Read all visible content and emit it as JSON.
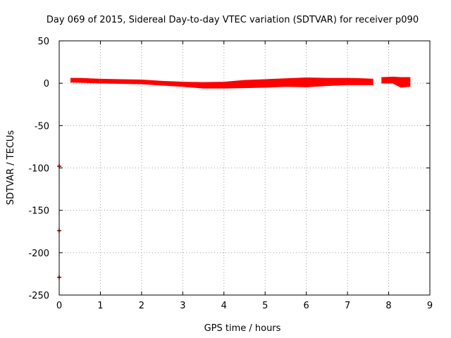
{
  "chart_data": {
    "type": "scatter",
    "title": "Day 069 of 2015, Sidereal Day-to-day VTEC variation (SDTVAR) for receiver p090",
    "xlabel": "GPS time / hours",
    "ylabel": "SDTVAR / TECUs",
    "xlim": [
      0,
      9
    ],
    "ylim": [
      -250,
      50
    ],
    "x_ticks": [
      0,
      1,
      2,
      3,
      4,
      5,
      6,
      7,
      8,
      9
    ],
    "y_ticks": [
      50,
      0,
      -50,
      -100,
      -150,
      -200,
      -250
    ],
    "grid": true,
    "marker_color": "#ff0000",
    "outlier_color": "#990000",
    "band": [
      {
        "x": 0.3,
        "ymin": 2.0,
        "ymax": 5.0
      },
      {
        "x": 0.5,
        "ymin": 1.8,
        "ymax": 5.0
      },
      {
        "x": 1.0,
        "ymin": 1.0,
        "ymax": 4.0
      },
      {
        "x": 1.5,
        "ymin": 0.5,
        "ymax": 3.5
      },
      {
        "x": 2.0,
        "ymin": 0.0,
        "ymax": 3.0
      },
      {
        "x": 2.5,
        "ymin": -1.5,
        "ymax": 1.5
      },
      {
        "x": 3.0,
        "ymin": -3.0,
        "ymax": 0.5
      },
      {
        "x": 3.5,
        "ymin": -5.0,
        "ymax": 0.0
      },
      {
        "x": 4.0,
        "ymin": -5.0,
        "ymax": 0.5
      },
      {
        "x": 4.5,
        "ymin": -4.5,
        "ymax": 2.5
      },
      {
        "x": 5.0,
        "ymin": -4.0,
        "ymax": 3.5
      },
      {
        "x": 5.5,
        "ymin": -3.0,
        "ymax": 4.5
      },
      {
        "x": 6.0,
        "ymin": -3.5,
        "ymax": 5.5
      },
      {
        "x": 6.5,
        "ymin": -2.0,
        "ymax": 5.0
      },
      {
        "x": 7.0,
        "ymin": -1.0,
        "ymax": 5.0
      },
      {
        "x": 7.4,
        "ymin": -1.0,
        "ymax": 4.5
      },
      {
        "x": 7.6,
        "ymin": -1.0,
        "ymax": 4.0
      }
    ],
    "band2": [
      {
        "x": 7.85,
        "ymin": 1.0,
        "ymax": 6.0
      },
      {
        "x": 8.1,
        "ymin": 1.0,
        "ymax": 6.5
      },
      {
        "x": 8.3,
        "ymin": -4.0,
        "ymax": 6.0
      },
      {
        "x": 8.5,
        "ymin": -3.0,
        "ymax": 6.0
      }
    ],
    "outliers": [
      {
        "x": 0.0,
        "y": -98
      },
      {
        "x": 0.0,
        "y": -174
      },
      {
        "x": 0.0,
        "y": -229
      }
    ]
  }
}
